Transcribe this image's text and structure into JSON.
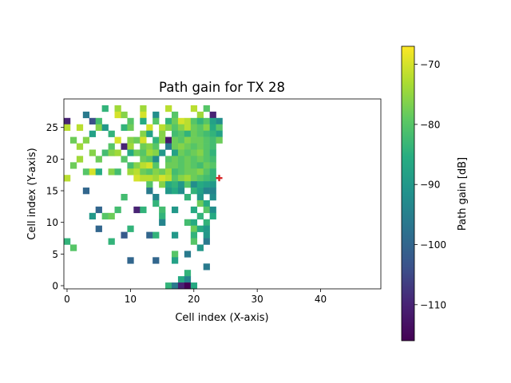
{
  "chart_data": {
    "type": "heatmap",
    "title": "Path gain for TX 28",
    "xlabel": "Cell index (X-axis)",
    "ylabel": "Cell index (Y-axis)",
    "xlim": [
      -0.5,
      49.5
    ],
    "ylim": [
      -0.5,
      29.5
    ],
    "xticks": [
      0,
      10,
      20,
      30,
      40
    ],
    "yticks": [
      0,
      5,
      10,
      15,
      20,
      25
    ],
    "grid": false,
    "colorbar": {
      "label": "Path gain [dB]",
      "colormap": "viridis",
      "range": [
        -116,
        -67
      ],
      "ticks": [
        -110,
        -100,
        -90,
        -80,
        -70
      ]
    },
    "transmitter": {
      "x": 24,
      "y": 17,
      "marker": "plus",
      "color": "#d62728"
    },
    "cells": [
      [
        6,
        28,
        -84
      ],
      [
        8,
        28,
        -74
      ],
      [
        12,
        28,
        -74
      ],
      [
        16,
        28,
        -72
      ],
      [
        20,
        28,
        -72
      ],
      [
        22,
        28,
        -80
      ],
      [
        3,
        27,
        -96
      ],
      [
        8,
        27,
        -70
      ],
      [
        9,
        27,
        -76
      ],
      [
        12,
        27,
        -70
      ],
      [
        14,
        27,
        -92
      ],
      [
        17,
        27,
        -80
      ],
      [
        21,
        27,
        -74
      ],
      [
        23,
        27,
        -110
      ],
      [
        0,
        26,
        -110
      ],
      [
        4,
        26,
        -104
      ],
      [
        5,
        26,
        -82
      ],
      [
        10,
        26,
        -80
      ],
      [
        12,
        26,
        -86
      ],
      [
        14,
        26,
        -80
      ],
      [
        16,
        26,
        -84
      ],
      [
        17,
        26,
        -78
      ],
      [
        18,
        26,
        -70
      ],
      [
        19,
        26,
        -72
      ],
      [
        20,
        26,
        -80
      ],
      [
        21,
        26,
        -84
      ],
      [
        22,
        26,
        -80
      ],
      [
        23,
        26,
        -88
      ],
      [
        24,
        26,
        -92
      ],
      [
        0,
        25,
        -72
      ],
      [
        2,
        25,
        -72
      ],
      [
        5,
        25,
        -76
      ],
      [
        6,
        25,
        -90
      ],
      [
        9,
        25,
        -84
      ],
      [
        10,
        25,
        -78
      ],
      [
        13,
        25,
        -70
      ],
      [
        15,
        25,
        -72
      ],
      [
        16,
        25,
        -76
      ],
      [
        17,
        25,
        -80
      ],
      [
        18,
        25,
        -76
      ],
      [
        19,
        25,
        -72
      ],
      [
        20,
        25,
        -78
      ],
      [
        21,
        25,
        -80
      ],
      [
        22,
        25,
        -76
      ],
      [
        23,
        25,
        -86
      ],
      [
        24,
        25,
        -80
      ],
      [
        4,
        24,
        -88
      ],
      [
        7,
        24,
        -84
      ],
      [
        12,
        24,
        -76
      ],
      [
        13,
        24,
        -88
      ],
      [
        15,
        24,
        -76
      ],
      [
        17,
        24,
        -82
      ],
      [
        18,
        24,
        -80
      ],
      [
        19,
        24,
        -84
      ],
      [
        20,
        24,
        -78
      ],
      [
        21,
        24,
        -80
      ],
      [
        22,
        24,
        -82
      ],
      [
        23,
        24,
        -84
      ],
      [
        24,
        24,
        -88
      ],
      [
        1,
        23,
        -78
      ],
      [
        3,
        23,
        -76
      ],
      [
        8,
        23,
        -70
      ],
      [
        10,
        23,
        -76
      ],
      [
        11,
        23,
        -78
      ],
      [
        12,
        23,
        -70
      ],
      [
        14,
        23,
        -84
      ],
      [
        15,
        23,
        -76
      ],
      [
        16,
        23,
        -112
      ],
      [
        17,
        23,
        -78
      ],
      [
        18,
        23,
        -80
      ],
      [
        19,
        23,
        -76
      ],
      [
        20,
        23,
        -78
      ],
      [
        21,
        23,
        -78
      ],
      [
        22,
        23,
        -80
      ],
      [
        23,
        23,
        -82
      ],
      [
        24,
        23,
        -78
      ],
      [
        2,
        22,
        -74
      ],
      [
        7,
        22,
        -80
      ],
      [
        9,
        22,
        -110
      ],
      [
        10,
        22,
        -74
      ],
      [
        12,
        22,
        -78
      ],
      [
        13,
        22,
        -76
      ],
      [
        14,
        22,
        -80
      ],
      [
        16,
        22,
        -96
      ],
      [
        17,
        22,
        -78
      ],
      [
        18,
        22,
        -76
      ],
      [
        19,
        22,
        -78
      ],
      [
        20,
        22,
        -80
      ],
      [
        21,
        22,
        -78
      ],
      [
        22,
        22,
        -80
      ],
      [
        23,
        22,
        -82
      ],
      [
        4,
        21,
        -76
      ],
      [
        6,
        21,
        -82
      ],
      [
        7,
        21,
        -76
      ],
      [
        8,
        21,
        -74
      ],
      [
        10,
        21,
        -86
      ],
      [
        11,
        21,
        -78
      ],
      [
        12,
        21,
        -80
      ],
      [
        13,
        21,
        -74
      ],
      [
        14,
        21,
        -76
      ],
      [
        15,
        21,
        -90
      ],
      [
        17,
        21,
        -88
      ],
      [
        18,
        21,
        -78
      ],
      [
        19,
        21,
        -80
      ],
      [
        20,
        21,
        -78
      ],
      [
        21,
        21,
        -76
      ],
      [
        22,
        21,
        -80
      ],
      [
        23,
        21,
        -84
      ],
      [
        2,
        20,
        -74
      ],
      [
        5,
        20,
        -78
      ],
      [
        9,
        20,
        -80
      ],
      [
        12,
        20,
        -78
      ],
      [
        13,
        20,
        -80
      ],
      [
        14,
        20,
        -92
      ],
      [
        16,
        20,
        -80
      ],
      [
        17,
        20,
        -78
      ],
      [
        18,
        20,
        -80
      ],
      [
        19,
        20,
        -78
      ],
      [
        20,
        20,
        -80
      ],
      [
        21,
        20,
        -78
      ],
      [
        22,
        20,
        -80
      ],
      [
        23,
        20,
        -82
      ],
      [
        1,
        19,
        -78
      ],
      [
        10,
        19,
        -82
      ],
      [
        11,
        19,
        -76
      ],
      [
        12,
        19,
        -72
      ],
      [
        13,
        19,
        -70
      ],
      [
        14,
        19,
        -80
      ],
      [
        16,
        19,
        -78
      ],
      [
        17,
        19,
        -78
      ],
      [
        18,
        19,
        -80
      ],
      [
        19,
        19,
        -78
      ],
      [
        20,
        19,
        -80
      ],
      [
        21,
        19,
        -82
      ],
      [
        22,
        19,
        -78
      ],
      [
        23,
        19,
        -80
      ],
      [
        3,
        18,
        -80
      ],
      [
        4,
        18,
        -70
      ],
      [
        5,
        18,
        -86
      ],
      [
        7,
        18,
        -76
      ],
      [
        8,
        18,
        -82
      ],
      [
        10,
        18,
        -74
      ],
      [
        11,
        18,
        -72
      ],
      [
        12,
        18,
        -78
      ],
      [
        13,
        18,
        -80
      ],
      [
        14,
        18,
        -76
      ],
      [
        15,
        18,
        -78
      ],
      [
        16,
        18,
        -74
      ],
      [
        17,
        18,
        -82
      ],
      [
        18,
        18,
        -80
      ],
      [
        19,
        18,
        -78
      ],
      [
        20,
        18,
        -78
      ],
      [
        21,
        18,
        -76
      ],
      [
        22,
        18,
        -80
      ],
      [
        23,
        18,
        -84
      ],
      [
        0,
        17,
        -72
      ],
      [
        11,
        17,
        -70
      ],
      [
        12,
        17,
        -72
      ],
      [
        13,
        17,
        -72
      ],
      [
        14,
        17,
        -74
      ],
      [
        15,
        17,
        -70
      ],
      [
        16,
        17,
        -72
      ],
      [
        17,
        17,
        -80
      ],
      [
        18,
        17,
        -76
      ],
      [
        19,
        17,
        -74
      ],
      [
        20,
        17,
        -78
      ],
      [
        21,
        17,
        -80
      ],
      [
        22,
        17,
        -82
      ],
      [
        23,
        17,
        -84
      ],
      [
        13,
        16,
        -80
      ],
      [
        15,
        16,
        -76
      ],
      [
        16,
        16,
        -86
      ],
      [
        17,
        16,
        -84
      ],
      [
        18,
        16,
        -90
      ],
      [
        19,
        16,
        -80
      ],
      [
        20,
        16,
        -92
      ],
      [
        21,
        16,
        -86
      ],
      [
        22,
        16,
        -88
      ],
      [
        23,
        16,
        -90
      ],
      [
        3,
        15,
        -100
      ],
      [
        13,
        15,
        -96
      ],
      [
        16,
        15,
        -90
      ],
      [
        17,
        15,
        -86
      ],
      [
        18,
        15,
        -92
      ],
      [
        20,
        15,
        -84
      ],
      [
        21,
        15,
        -88
      ],
      [
        22,
        15,
        -94
      ],
      [
        23,
        15,
        -94
      ],
      [
        9,
        14,
        -82
      ],
      [
        14,
        14,
        -94
      ],
      [
        19,
        14,
        -84
      ],
      [
        21,
        14,
        -90
      ],
      [
        23,
        14,
        -92
      ],
      [
        14,
        13,
        -84
      ],
      [
        21,
        13,
        -78
      ],
      [
        22,
        13,
        -86
      ],
      [
        5,
        12,
        -100
      ],
      [
        8,
        12,
        -82
      ],
      [
        11,
        12,
        -110
      ],
      [
        12,
        12,
        -84
      ],
      [
        15,
        12,
        -82
      ],
      [
        17,
        12,
        -90
      ],
      [
        20,
        12,
        -86
      ],
      [
        22,
        12,
        -80
      ],
      [
        23,
        12,
        -92
      ],
      [
        4,
        11,
        -90
      ],
      [
        6,
        11,
        -80
      ],
      [
        7,
        11,
        -78
      ],
      [
        15,
        11,
        -84
      ],
      [
        21,
        11,
        -84
      ],
      [
        23,
        11,
        -86
      ],
      [
        15,
        10,
        -94
      ],
      [
        19,
        10,
        -82
      ],
      [
        20,
        10,
        -86
      ],
      [
        22,
        10,
        -84
      ],
      [
        5,
        9,
        -100
      ],
      [
        10,
        9,
        -84
      ],
      [
        20,
        9,
        -78
      ],
      [
        21,
        9,
        -86
      ],
      [
        22,
        9,
        -90
      ],
      [
        9,
        8,
        -102
      ],
      [
        13,
        8,
        -100
      ],
      [
        14,
        8,
        -84
      ],
      [
        17,
        8,
        -90
      ],
      [
        20,
        8,
        -84
      ],
      [
        22,
        8,
        -90
      ],
      [
        0,
        7,
        -84
      ],
      [
        7,
        7,
        -84
      ],
      [
        20,
        7,
        -80
      ],
      [
        22,
        7,
        -96
      ],
      [
        1,
        6,
        -80
      ],
      [
        21,
        6,
        -90
      ],
      [
        17,
        5,
        -80
      ],
      [
        19,
        5,
        -96
      ],
      [
        10,
        4,
        -100
      ],
      [
        14,
        4,
        -100
      ],
      [
        17,
        4,
        -88
      ],
      [
        22,
        3,
        -96
      ],
      [
        19,
        2,
        -84
      ],
      [
        18,
        1,
        -86
      ],
      [
        19,
        1,
        -94
      ],
      [
        16,
        0,
        -84
      ],
      [
        17,
        0,
        -96
      ],
      [
        18,
        0,
        -110
      ],
      [
        19,
        0,
        -116
      ],
      [
        20,
        0,
        -86
      ]
    ]
  }
}
